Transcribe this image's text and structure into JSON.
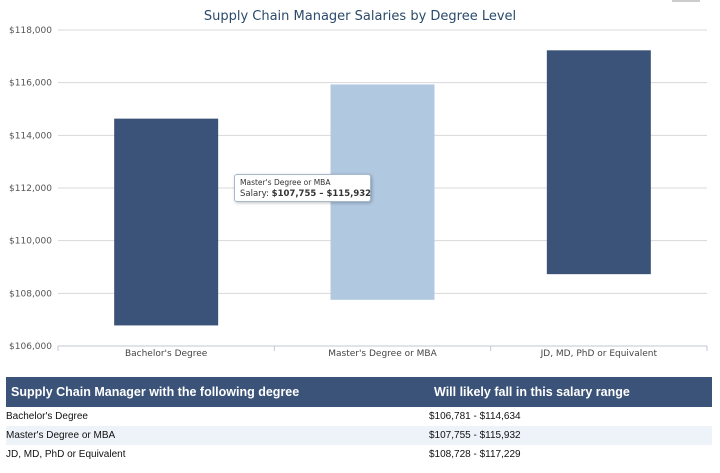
{
  "chart_data": {
    "type": "bar",
    "title": "Supply Chain Manager Salaries by Degree Level",
    "categories": [
      "Bachelor's Degree",
      "Master's Degree or MBA",
      "JD, MD, PhD or Equivalent"
    ],
    "low": [
      106781,
      107755,
      108728
    ],
    "high": [
      114634,
      115932,
      117229
    ],
    "ylim": [
      106000,
      118000
    ],
    "yticks": [
      "$106,000",
      "$108,000",
      "$110,000",
      "$112,000",
      "$114,000",
      "$116,000",
      "$118,000"
    ],
    "xlabel": "",
    "ylabel": "",
    "grid": true,
    "colors": [
      "#3b5378",
      "#b0c8e0",
      "#3b5378"
    ]
  },
  "tooltip": {
    "title": "Master's Degree or MBA",
    "label": "Salary: ",
    "value": "$107,755 – $115,932"
  },
  "table": {
    "headers": [
      "Supply Chain Manager with the following degree",
      "Will likely fall in this salary range"
    ],
    "rows": [
      {
        "degree": "Bachelor's Degree",
        "range": "$106,781 - $114,634"
      },
      {
        "degree": "Master's Degree or MBA",
        "range": "$107,755 - $115,932"
      },
      {
        "degree": "JD, MD, PhD or Equivalent",
        "range": "$108,728 - $117,229"
      }
    ],
    "header_color": "#3b5378"
  }
}
